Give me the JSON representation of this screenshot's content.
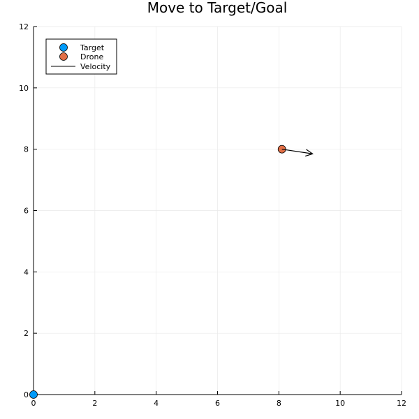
{
  "chart_data": {
    "type": "scatter",
    "title": "Move to Target/Goal",
    "xlabel": "",
    "ylabel": "",
    "xlim": [
      0,
      12
    ],
    "ylim": [
      0,
      12
    ],
    "grid": true,
    "legend_position": "top-left",
    "xticks": [
      "0",
      "2",
      "4",
      "6",
      "8",
      "10",
      "12"
    ],
    "yticks": [
      "0",
      "2",
      "4",
      "6",
      "8",
      "10",
      "12"
    ],
    "series": [
      {
        "name": "Target",
        "type": "scatter",
        "color": "#009AF9",
        "points": [
          [
            0.0,
            0.0
          ]
        ]
      },
      {
        "name": "Drone",
        "type": "scatter",
        "color": "#E26F46",
        "points": [
          [
            8.1,
            8.0
          ]
        ]
      },
      {
        "name": "Velocity",
        "type": "arrow",
        "color": "#000000",
        "from": [
          8.1,
          8.0
        ],
        "to": [
          9.1,
          7.85
        ]
      }
    ]
  }
}
